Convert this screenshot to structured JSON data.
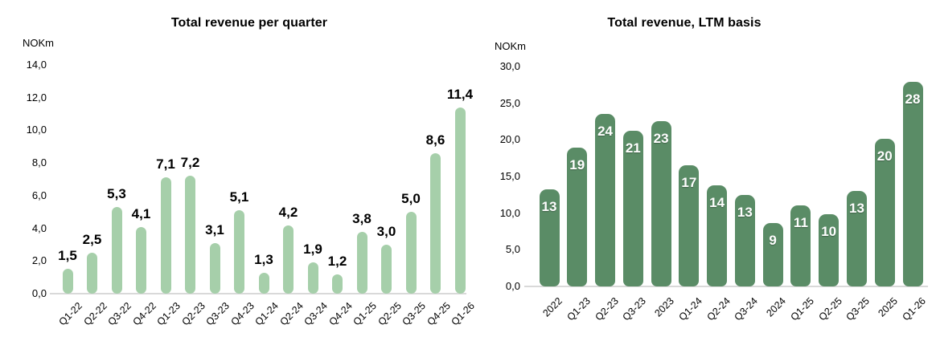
{
  "chart_data": [
    {
      "type": "bar",
      "title": "Total revenue per quarter",
      "ylabel": "NOKm",
      "xlabel": "",
      "ylim": [
        0,
        14
      ],
      "ytick_step": 2,
      "ytick_values": [
        14,
        12,
        10,
        8,
        6,
        4,
        2,
        0
      ],
      "ytick_labels": [
        "14,0",
        "12,0",
        "10,0",
        "8,0",
        "6,0",
        "4,0",
        "2,0",
        "0,0"
      ],
      "categories": [
        "Q1-22",
        "Q2-22",
        "Q3-22",
        "Q4-22",
        "Q1-23",
        "Q2-23",
        "Q3-23",
        "Q4-23",
        "Q1-24",
        "Q2-24",
        "Q3-24",
        "Q4-24",
        "Q1-25",
        "Q2-25",
        "Q3-25",
        "Q4-25",
        "Q1-26"
      ],
      "values": [
        1.5,
        2.5,
        5.3,
        4.1,
        7.1,
        7.2,
        3.1,
        5.1,
        1.3,
        4.2,
        1.9,
        1.2,
        3.8,
        3.0,
        5.0,
        8.6,
        11.4
      ],
      "value_labels": [
        "1,5",
        "2,5",
        "5,3",
        "4,1",
        "7,1",
        "7,2",
        "3,1",
        "5,1",
        "1,3",
        "4,2",
        "1,9",
        "1,2",
        "3,8",
        "3,0",
        "5,0",
        "8,6",
        "11,4"
      ],
      "bar_color": "#a6cfaa",
      "value_label_color": "#000000",
      "value_label_position": "above",
      "axis_line_color": "#d9d9d9",
      "grid": "off",
      "legend": "none"
    },
    {
      "type": "bar",
      "title": "Total revenue, LTM basis",
      "ylabel": "NOKm",
      "xlabel": "",
      "ylim": [
        0,
        30
      ],
      "ytick_step": 5,
      "ytick_values": [
        30,
        25,
        20,
        15,
        10,
        5,
        0
      ],
      "ytick_labels": [
        "30,0",
        "25,0",
        "20,0",
        "15,0",
        "10,0",
        "5,0",
        "0,0"
      ],
      "categories": [
        "2022",
        "Q1-23",
        "Q2-23",
        "Q3-23",
        "2023",
        "Q1-24",
        "Q2-24",
        "Q3-24",
        "2024",
        "Q1-25",
        "Q2-25",
        "Q3-25",
        "2025",
        "Q1-26"
      ],
      "values": [
        13.2,
        18.9,
        23.5,
        21.2,
        22.6,
        16.5,
        13.8,
        12.5,
        8.6,
        11.1,
        9.9,
        13.0,
        20.2,
        27.9
      ],
      "value_labels": [
        "13",
        "19",
        "24",
        "21",
        "23",
        "17",
        "14",
        "13",
        "9",
        "11",
        "10",
        "13",
        "20",
        "28"
      ],
      "bar_color": "#5a8c66",
      "value_label_color": "#ffffff",
      "value_label_position": "inside-top",
      "axis_line_color": "#d9d9d9",
      "grid": "off",
      "legend": "none"
    }
  ]
}
